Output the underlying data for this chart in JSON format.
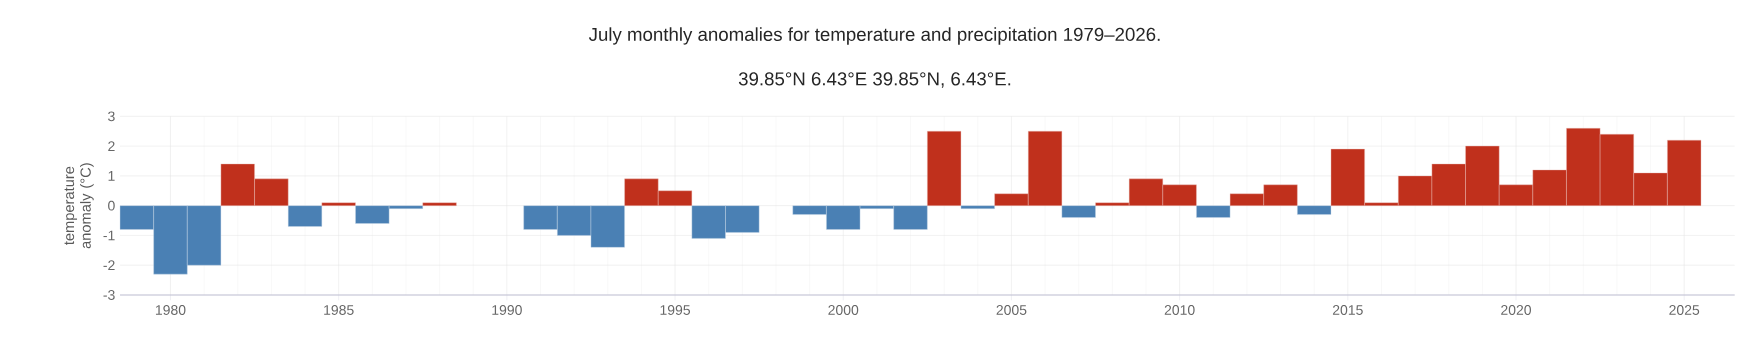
{
  "chart_data": {
    "type": "bar",
    "title": "July monthly anomalies for temperature and precipitation 1979–2026.",
    "subtitle": "39.85°N 6.43°E 39.85°N, 6.43°E.",
    "ylabel": "temperature anomaly (°C)",
    "x": [
      1979,
      1980,
      1981,
      1982,
      1983,
      1984,
      1985,
      1986,
      1987,
      1988,
      1989,
      1990,
      1991,
      1992,
      1993,
      1994,
      1995,
      1996,
      1997,
      1998,
      1999,
      2000,
      2001,
      2002,
      2003,
      2004,
      2005,
      2006,
      2007,
      2008,
      2009,
      2010,
      2011,
      2012,
      2013,
      2014,
      2015,
      2016,
      2017,
      2018,
      2019,
      2020,
      2021,
      2022,
      2023,
      2024,
      2025
    ],
    "values": [
      -0.8,
      -2.3,
      -2.0,
      1.4,
      0.9,
      -0.7,
      0.1,
      -0.6,
      -0.1,
      0.1,
      null,
      null,
      -0.8,
      -1.0,
      -1.4,
      0.9,
      0.5,
      -1.1,
      -0.9,
      null,
      -0.3,
      -0.8,
      -0.1,
      -0.8,
      2.5,
      -0.1,
      0.4,
      2.5,
      -0.4,
      0.1,
      0.9,
      0.7,
      -0.4,
      0.4,
      0.7,
      -0.3,
      1.9,
      0.1,
      1.0,
      1.4,
      2.0,
      0.7,
      1.2,
      2.6,
      2.4,
      1.1,
      2.2
    ],
    "colors": [
      "#4a80b4",
      "#4a80b4",
      "#4a80b4",
      "#c0301c",
      "#c0301c",
      "#4a80b4",
      "#c0301c",
      "#4a80b4",
      "#4a80b4",
      "#c0301c",
      null,
      null,
      "#4a80b4",
      "#4a80b4",
      "#4a80b4",
      "#c0301c",
      "#c0301c",
      "#4a80b4",
      "#4a80b4",
      null,
      "#4a80b4",
      "#4a80b4",
      "#4a80b4",
      "#4a80b4",
      "#c0301c",
      "#4a80b4",
      "#c0301c",
      "#c0301c",
      "#4a80b4",
      "#c0301c",
      "#c0301c",
      "#c0301c",
      "#4a80b4",
      "#c0301c",
      "#c0301c",
      "#4a80b4",
      "#c0301c",
      "#c0301c",
      "#c0301c",
      "#c0301c",
      "#c0301c",
      "#c0301c",
      "#c0301c",
      "#c0301c",
      "#c0301c",
      "#c0301c",
      "#c0301c"
    ],
    "xlim": [
      1978.5,
      2026.5
    ],
    "xticks": [
      1980,
      1985,
      1990,
      1995,
      2000,
      2005,
      2010,
      2015,
      2020,
      2025
    ],
    "ylim": [
      -3,
      3
    ],
    "yticks": [
      -3,
      -2,
      -1,
      0,
      1,
      2,
      3
    ],
    "grid": true
  }
}
